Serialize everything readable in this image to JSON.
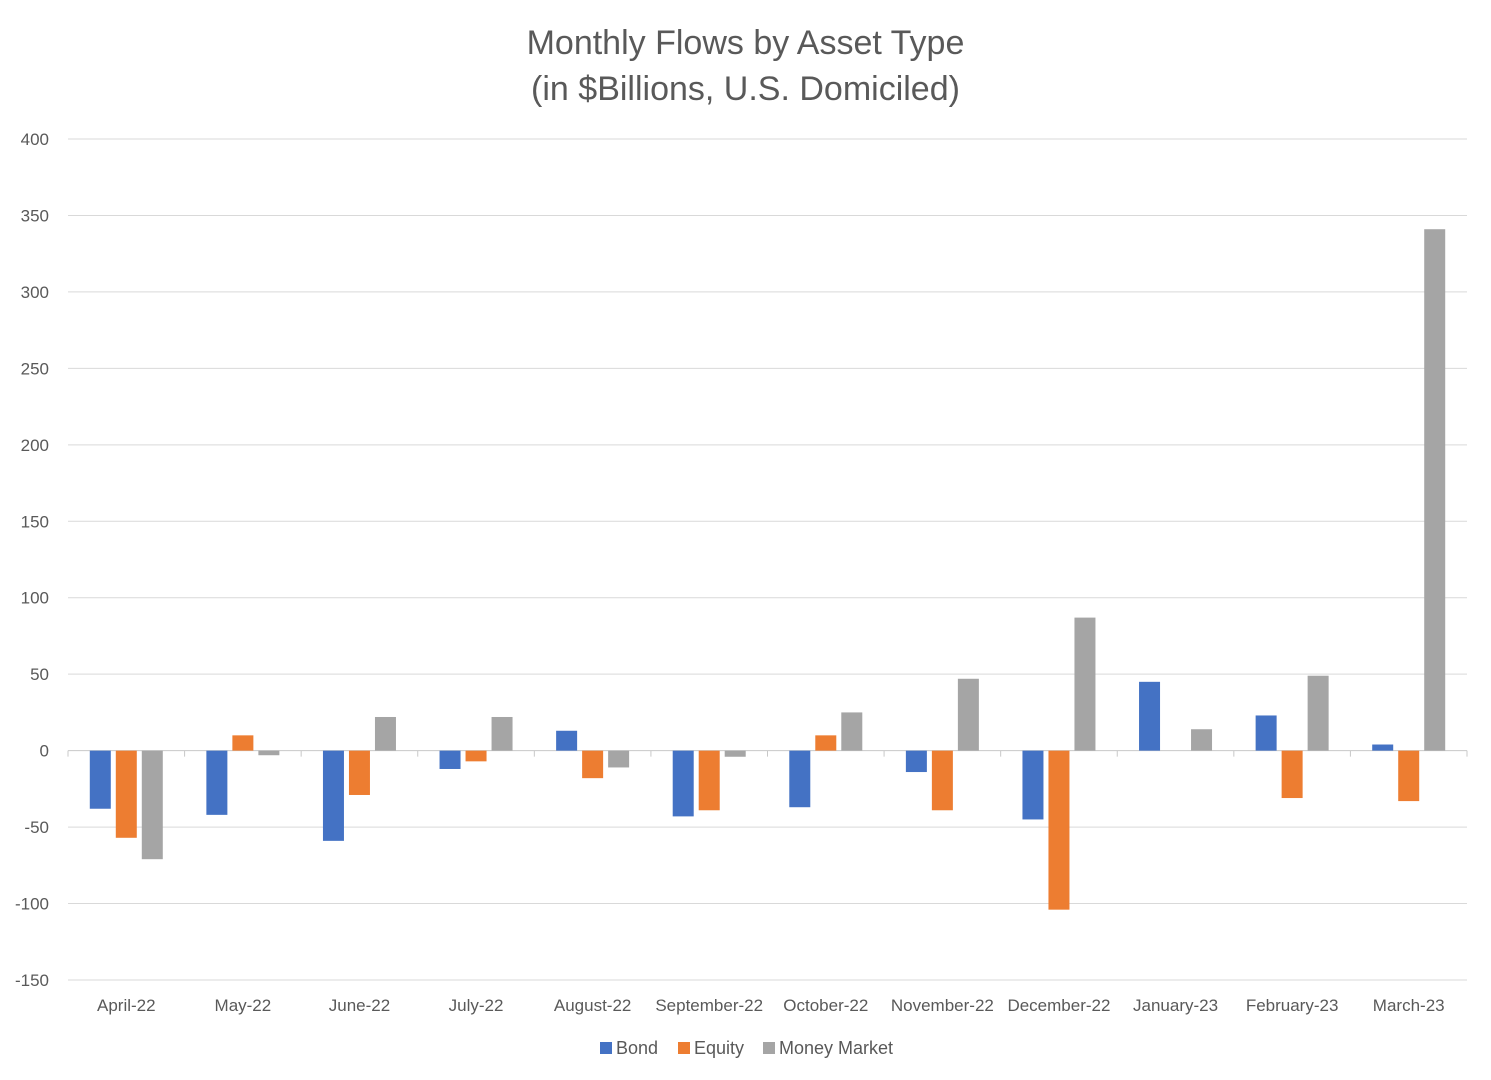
{
  "chart_data": {
    "type": "bar",
    "title": "Monthly Flows by Asset Type",
    "subtitle": "(in $Billions, U.S. Domiciled)",
    "xlabel": "",
    "ylabel": "",
    "ylim": [
      -150,
      400
    ],
    "yticks": [
      400,
      350,
      300,
      250,
      200,
      150,
      100,
      50,
      0,
      -50,
      -100,
      -150
    ],
    "grid": true,
    "legend_position": "bottom",
    "categories": [
      "April-22",
      "May-22",
      "June-22",
      "July-22",
      "August-22",
      "September-22",
      "October-22",
      "November-22",
      "December-22",
      "January-23",
      "February-23",
      "March-23"
    ],
    "series": [
      {
        "name": "Bond",
        "color": "#4472C4",
        "values": [
          -38,
          -42,
          -59,
          -12,
          13,
          -43,
          -37,
          -14,
          -45,
          45,
          23,
          4
        ]
      },
      {
        "name": "Equity",
        "color": "#ED7D31",
        "values": [
          -57,
          10,
          -29,
          -7,
          -18,
          -39,
          10,
          -39,
          -104,
          0,
          -31,
          -33
        ]
      },
      {
        "name": "Money Market",
        "color": "#A5A5A5",
        "values": [
          -71,
          -3,
          22,
          22,
          -11,
          -4,
          25,
          47,
          87,
          14,
          49,
          341
        ]
      }
    ]
  }
}
